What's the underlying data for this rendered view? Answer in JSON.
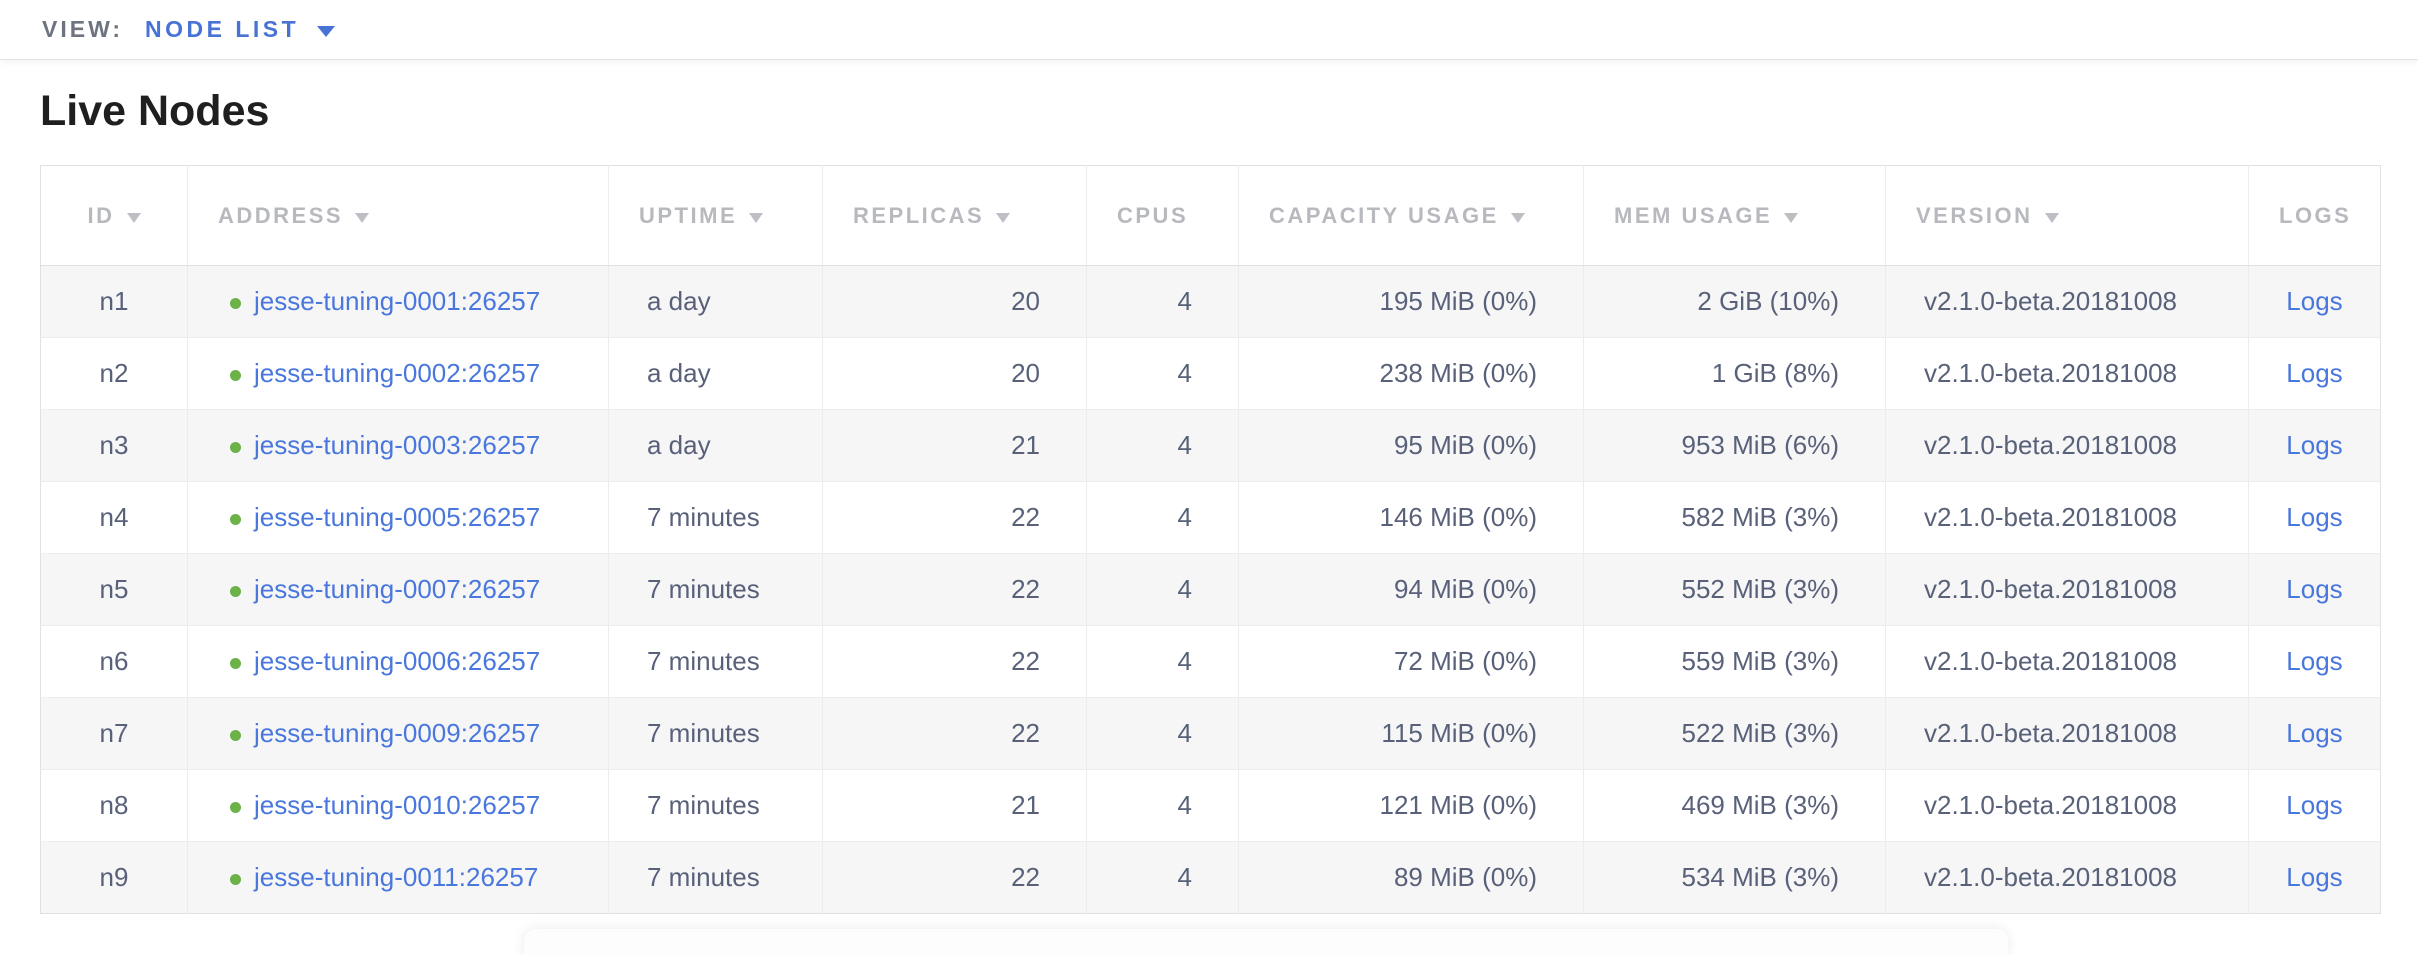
{
  "view_bar": {
    "label": "VIEW:",
    "selected": "NODE LIST"
  },
  "page": {
    "title": "Live Nodes"
  },
  "table": {
    "columns": [
      {
        "key": "id",
        "label": "ID",
        "sorted": true
      },
      {
        "key": "address",
        "label": "ADDRESS",
        "sorted": true
      },
      {
        "key": "uptime",
        "label": "UPTIME",
        "sorted": true
      },
      {
        "key": "replicas",
        "label": "REPLICAS",
        "sorted": true
      },
      {
        "key": "cpus",
        "label": "CPUS",
        "sorted": false
      },
      {
        "key": "capacity_usage",
        "label": "CAPACITY USAGE",
        "sorted": true
      },
      {
        "key": "mem_usage",
        "label": "MEM USAGE",
        "sorted": true
      },
      {
        "key": "version",
        "label": "VERSION",
        "sorted": true
      },
      {
        "key": "logs",
        "label": "LOGS",
        "sorted": false
      }
    ],
    "rows": [
      {
        "id": "n1",
        "status": "live",
        "address": "jesse-tuning-0001:26257",
        "uptime": "a day",
        "replicas": "20",
        "cpus": "4",
        "capacity_usage": "195 MiB (0%)",
        "mem_usage": "2 GiB (10%)",
        "version": "v2.1.0-beta.20181008",
        "logs": "Logs"
      },
      {
        "id": "n2",
        "status": "live",
        "address": "jesse-tuning-0002:26257",
        "uptime": "a day",
        "replicas": "20",
        "cpus": "4",
        "capacity_usage": "238 MiB (0%)",
        "mem_usage": "1 GiB (8%)",
        "version": "v2.1.0-beta.20181008",
        "logs": "Logs"
      },
      {
        "id": "n3",
        "status": "live",
        "address": "jesse-tuning-0003:26257",
        "uptime": "a day",
        "replicas": "21",
        "cpus": "4",
        "capacity_usage": "95 MiB (0%)",
        "mem_usage": "953 MiB (6%)",
        "version": "v2.1.0-beta.20181008",
        "logs": "Logs"
      },
      {
        "id": "n4",
        "status": "live",
        "address": "jesse-tuning-0005:26257",
        "uptime": "7 minutes",
        "replicas": "22",
        "cpus": "4",
        "capacity_usage": "146 MiB (0%)",
        "mem_usage": "582 MiB (3%)",
        "version": "v2.1.0-beta.20181008",
        "logs": "Logs"
      },
      {
        "id": "n5",
        "status": "live",
        "address": "jesse-tuning-0007:26257",
        "uptime": "7 minutes",
        "replicas": "22",
        "cpus": "4",
        "capacity_usage": "94 MiB (0%)",
        "mem_usage": "552 MiB (3%)",
        "version": "v2.1.0-beta.20181008",
        "logs": "Logs"
      },
      {
        "id": "n6",
        "status": "live",
        "address": "jesse-tuning-0006:26257",
        "uptime": "7 minutes",
        "replicas": "22",
        "cpus": "4",
        "capacity_usage": "72 MiB (0%)",
        "mem_usage": "559 MiB (3%)",
        "version": "v2.1.0-beta.20181008",
        "logs": "Logs"
      },
      {
        "id": "n7",
        "status": "live",
        "address": "jesse-tuning-0009:26257",
        "uptime": "7 minutes",
        "replicas": "22",
        "cpus": "4",
        "capacity_usage": "115 MiB (0%)",
        "mem_usage": "522 MiB (3%)",
        "version": "v2.1.0-beta.20181008",
        "logs": "Logs"
      },
      {
        "id": "n8",
        "status": "live",
        "address": "jesse-tuning-0010:26257",
        "uptime": "7 minutes",
        "replicas": "21",
        "cpus": "4",
        "capacity_usage": "121 MiB (0%)",
        "mem_usage": "469 MiB (3%)",
        "version": "v2.1.0-beta.20181008",
        "logs": "Logs"
      },
      {
        "id": "n9",
        "status": "live",
        "address": "jesse-tuning-0011:26257",
        "uptime": "7 minutes",
        "replicas": "22",
        "cpus": "4",
        "capacity_usage": "89 MiB (0%)",
        "mem_usage": "534 MiB (3%)",
        "version": "v2.1.0-beta.20181008",
        "logs": "Logs"
      }
    ]
  },
  "colors": {
    "accent_blue": "#4872d4",
    "link_blue": "#4a77dd",
    "node_live_green": "#6cb249",
    "header_gray": "#b7b9be",
    "cell_text": "#59617a"
  }
}
